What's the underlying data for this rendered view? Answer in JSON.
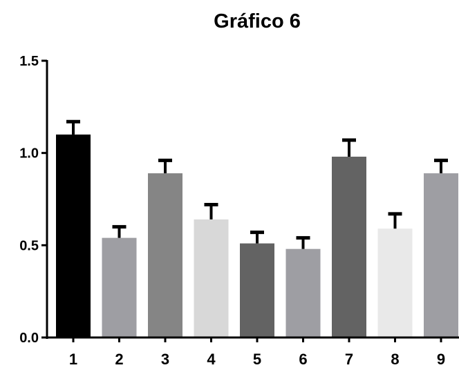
{
  "chart_data": {
    "type": "bar",
    "title": "Gráfico 6",
    "xlabel": "",
    "ylabel": "",
    "categories": [
      "1",
      "2",
      "3",
      "4",
      "5",
      "6",
      "7",
      "8",
      "9"
    ],
    "values": [
      1.1,
      0.54,
      0.89,
      0.64,
      0.51,
      0.48,
      0.98,
      0.59,
      0.89
    ],
    "error_upper": [
      0.07,
      0.06,
      0.07,
      0.08,
      0.06,
      0.06,
      0.09,
      0.08,
      0.07
    ],
    "bar_colors": [
      "#000000",
      "#9e9ea3",
      "#858585",
      "#d8d8d8",
      "#636363",
      "#9e9ea3",
      "#636363",
      "#e9e9e9",
      "#9e9ea3"
    ],
    "ylim": [
      0,
      1.5
    ],
    "yticks": [
      "0.0",
      "0.5",
      "1.0",
      "1.5"
    ],
    "grid": false,
    "legend": false
  }
}
